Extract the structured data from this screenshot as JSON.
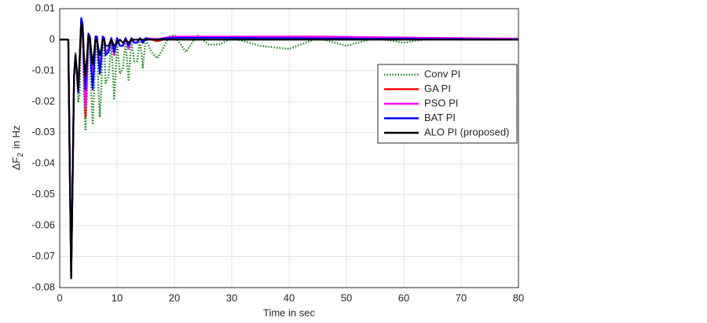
{
  "chart_data": {
    "type": "line",
    "xlabel": "Time in sec",
    "ylabel": "ΔF",
    "ylabel_sub": "2",
    "ylabel_suffix": "in Hz",
    "xlim": [
      0,
      80
    ],
    "ylim": [
      -0.08,
      0.01
    ],
    "xticks": [
      0,
      10,
      20,
      30,
      40,
      50,
      60,
      70,
      80
    ],
    "yticks": [
      0.01,
      0,
      -0.01,
      -0.02,
      -0.03,
      -0.04,
      -0.05,
      -0.06,
      -0.07,
      -0.08
    ],
    "grid": true,
    "legend": "upper right",
    "x": [
      0,
      0.5,
      1,
      1.5,
      1.75,
      2,
      2.25,
      2.5,
      2.75,
      3,
      3.25,
      3.5,
      3.75,
      4,
      4.25,
      4.5,
      4.75,
      5,
      5.25,
      5.5,
      5.75,
      6,
      6.25,
      6.5,
      6.75,
      7,
      7.25,
      7.5,
      7.75,
      8,
      8.5,
      9,
      9.5,
      10,
      10.5,
      11,
      11.5,
      12,
      12.5,
      13,
      13.5,
      14,
      14.5,
      15,
      16,
      17,
      18,
      19,
      20,
      22,
      24,
      26,
      28,
      30,
      35,
      40,
      45,
      50,
      55,
      60,
      65,
      70,
      75,
      80
    ],
    "series": [
      {
        "name": "Conv PI",
        "color": "#1f8a1f",
        "dash": "dotted",
        "values": [
          0,
          0,
          0,
          0,
          -0.04,
          -0.076,
          -0.045,
          -0.012,
          -0.004,
          -0.012,
          -0.02,
          -0.017,
          0.003,
          0.001,
          -0.019,
          -0.029,
          -0.018,
          -0.002,
          -0.002,
          -0.017,
          -0.027,
          -0.017,
          -0.002,
          -0.002,
          -0.016,
          -0.025,
          -0.016,
          -0.0015,
          -0.0015,
          -0.014,
          -0.012,
          -0.001,
          -0.019,
          -0.001,
          -0.011,
          -0.0095,
          -0.0005,
          -0.013,
          -0.0003,
          -0.007,
          -0.007,
          0,
          -0.009,
          0.0001,
          -0.004,
          -0.006,
          -0.003,
          0.001,
          0.0015,
          -0.004,
          0.0015,
          -0.0016,
          -0.0015,
          0.0006,
          -0.002,
          -0.003,
          0.0005,
          -0.002,
          0.0005,
          -0.001,
          0.0005,
          0,
          0,
          0
        ]
      },
      {
        "name": "GA PI",
        "color": "#ff0000",
        "dash": "solid",
        "values": [
          0,
          0,
          0,
          0,
          -0.04,
          -0.077,
          -0.045,
          -0.012,
          -0.005,
          -0.011,
          -0.017,
          -0.006,
          0.006,
          0.004,
          -0.012,
          -0.025,
          -0.012,
          0.001,
          0.001,
          -0.007,
          -0.013,
          -0.007,
          0.001,
          0.001,
          -0.005,
          -0.009,
          -0.005,
          0.001,
          0.0005,
          -0.004,
          -0.003,
          0.0005,
          -0.005,
          0.0005,
          -0.002,
          -0.002,
          0.0005,
          -0.003,
          0.0005,
          -0.001,
          -0.001,
          0.0005,
          -0.001,
          0.0005,
          0,
          -0.0005,
          0,
          0.0005,
          0.0006,
          0.0006,
          0.0006,
          0.0006,
          0.0006,
          0.0006,
          0.0006,
          0.0005,
          0.0004,
          0.0003,
          0.0002,
          0.0001,
          0,
          0,
          0,
          0
        ]
      },
      {
        "name": "PSO PI",
        "color": "#ff00ff",
        "dash": "solid",
        "values": [
          0,
          0,
          0,
          0,
          -0.04,
          -0.077,
          -0.045,
          -0.012,
          -0.005,
          -0.011,
          -0.017,
          -0.006,
          0.006,
          0.004,
          -0.012,
          -0.022,
          -0.012,
          0.001,
          0.001,
          -0.007,
          -0.012,
          -0.007,
          0.001,
          0.001,
          -0.005,
          -0.008,
          -0.005,
          0.001,
          0.0005,
          -0.004,
          -0.003,
          0.0005,
          -0.005,
          0.0005,
          -0.002,
          -0.002,
          0.0005,
          -0.003,
          0.0005,
          -0.001,
          -0.001,
          0.0005,
          -0.001,
          0.0005,
          0.0003,
          0.0002,
          0.0005,
          0.0008,
          0.001,
          0.001,
          0.001,
          0.001,
          0.001,
          0.001,
          0.001,
          0.001,
          0.001,
          0.0009,
          0.0008,
          0.0007,
          0.0006,
          0.0005,
          0.0004,
          0.0003
        ]
      },
      {
        "name": "BAT PI",
        "color": "#0000ff",
        "dash": "solid",
        "values": [
          0,
          0,
          0,
          0,
          -0.04,
          -0.077,
          -0.045,
          -0.012,
          -0.005,
          -0.011,
          -0.017,
          -0.005,
          0.007,
          0.005,
          -0.008,
          -0.016,
          -0.008,
          0.002,
          0.001,
          -0.009,
          -0.016,
          -0.009,
          0.001,
          0.001,
          -0.006,
          -0.011,
          -0.006,
          0.001,
          0.0005,
          -0.005,
          -0.004,
          0.0005,
          -0.004,
          0.0005,
          -0.002,
          -0.002,
          0.0005,
          -0.002,
          0.0005,
          -0.001,
          -0.001,
          0.0005,
          -0.001,
          0.0005,
          0,
          0,
          0.0003,
          0.0005,
          0.0006,
          0.0006,
          0.0006,
          0.0006,
          0.0006,
          0.0006,
          0.0005,
          0.0005,
          0.0004,
          0.0004,
          0.0003,
          0.0003,
          0.0002,
          0.0002,
          0.0001,
          0.0001
        ]
      },
      {
        "name": "ALO PI (proposed)",
        "color": "#000000",
        "dash": "solid",
        "values": [
          0,
          0,
          0,
          0,
          -0.04,
          -0.077,
          -0.045,
          -0.012,
          -0.005,
          -0.01,
          -0.016,
          -0.005,
          0.005,
          0.004,
          -0.006,
          -0.012,
          -0.006,
          0.001,
          0.001,
          -0.004,
          -0.008,
          -0.004,
          0,
          0,
          -0.003,
          -0.005,
          -0.003,
          0,
          0,
          -0.002,
          -0.002,
          0,
          -0.002,
          -0.001,
          0,
          -0.001,
          0,
          -0.001,
          0,
          0,
          0,
          0,
          0,
          0,
          0,
          0,
          0,
          0,
          0,
          0,
          0,
          0,
          0,
          0,
          0,
          0,
          0,
          0,
          0,
          0,
          0,
          0,
          0,
          0
        ]
      }
    ]
  }
}
